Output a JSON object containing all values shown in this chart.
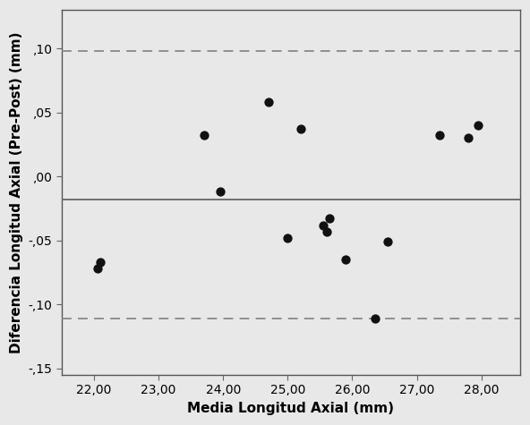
{
  "x_data": [
    22.05,
    22.1,
    23.7,
    23.95,
    24.7,
    25.0,
    25.2,
    25.55,
    25.6,
    25.65,
    25.9,
    26.35,
    26.55,
    27.35,
    27.8,
    27.95
  ],
  "y_data": [
    -0.072,
    -0.067,
    0.032,
    -0.012,
    0.058,
    -0.048,
    0.037,
    -0.038,
    -0.043,
    -0.033,
    -0.065,
    -0.111,
    -0.051,
    0.032,
    0.03,
    0.04
  ],
  "mean_line": -0.018,
  "upper_loa": 0.098,
  "lower_loa": -0.111,
  "xlabel": "Media Longitud Axial (mm)",
  "ylabel": "Diferencia Longitud Axial (Pre-Post) (mm)",
  "xlim": [
    21.5,
    28.6
  ],
  "ylim": [
    -0.155,
    0.13
  ],
  "xticks": [
    22.0,
    23.0,
    24.0,
    25.0,
    26.0,
    27.0,
    28.0
  ],
  "yticks": [
    -0.15,
    -0.1,
    -0.05,
    0.0,
    0.05,
    0.1
  ],
  "bg_color": "#e8e8e8",
  "plot_bg_color": "#e8e8e8",
  "dot_color": "#111111",
  "dot_size": 55,
  "mean_line_color": "#666666",
  "loa_line_color": "#888888",
  "xlabel_fontsize": 11,
  "ylabel_fontsize": 11,
  "tick_fontsize": 10,
  "label_fontweight": "bold"
}
